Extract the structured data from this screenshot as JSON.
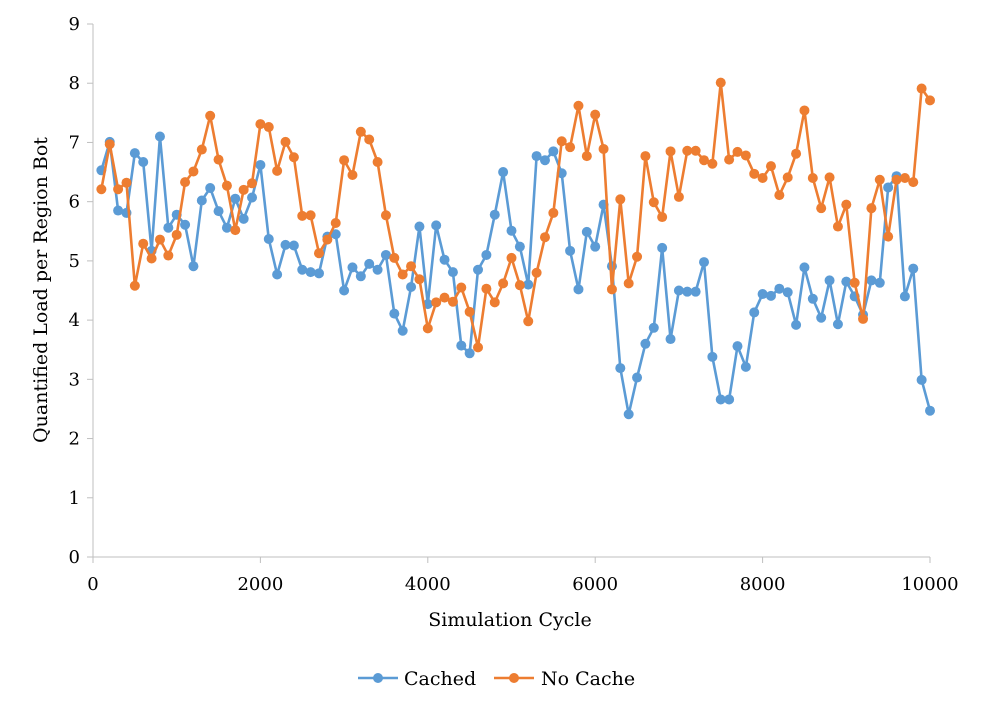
{
  "chart_data": {
    "type": "line",
    "title": "",
    "xlabel": "Simulation Cycle",
    "ylabel": "Quantified Load per Region Bot",
    "xlim": [
      0,
      10000
    ],
    "ylim": [
      0,
      9
    ],
    "x_ticks": [
      "0",
      "2000",
      "4000",
      "6000",
      "8000",
      "10000"
    ],
    "y_ticks": [
      "0",
      "1",
      "2",
      "3",
      "4",
      "5",
      "6",
      "7",
      "8",
      "9"
    ],
    "grid": false,
    "legend_position": "bottom",
    "x": [
      100,
      200,
      300,
      400,
      500,
      600,
      700,
      800,
      900,
      1000,
      1100,
      1200,
      1300,
      1400,
      1500,
      1600,
      1700,
      1800,
      1900,
      2000,
      2100,
      2200,
      2300,
      2400,
      2500,
      2600,
      2700,
      2800,
      2900,
      3000,
      3100,
      3200,
      3300,
      3400,
      3500,
      3600,
      3700,
      3800,
      3900,
      4000,
      4100,
      4200,
      4300,
      4400,
      4500,
      4600,
      4700,
      4800,
      4900,
      5000,
      5100,
      5200,
      5300,
      5400,
      5500,
      5600,
      5700,
      5800,
      5900,
      6000,
      6100,
      6200,
      6300,
      6400,
      6500,
      6600,
      6700,
      6800,
      6900,
      7000,
      7100,
      7200,
      7300,
      7400,
      7500,
      7600,
      7700,
      7800,
      7900,
      8000,
      8100,
      8200,
      8300,
      8400,
      8500,
      8600,
      8700,
      8800,
      8900,
      9000,
      9100,
      9200,
      9300,
      9400,
      9500,
      9600,
      9700,
      9800,
      9900,
      10000
    ],
    "series": [
      {
        "name": "Cached",
        "color": "#5b9bd5",
        "values": [
          6.53,
          7.01,
          5.85,
          5.81,
          6.82,
          6.67,
          5.17,
          7.1,
          5.56,
          5.78,
          5.61,
          4.91,
          6.02,
          6.23,
          5.84,
          5.56,
          6.05,
          5.71,
          6.07,
          6.62,
          5.37,
          4.77,
          5.27,
          5.26,
          4.85,
          4.81,
          4.79,
          5.41,
          5.45,
          4.5,
          4.89,
          4.74,
          4.95,
          4.85,
          5.1,
          4.11,
          3.82,
          4.56,
          5.58,
          4.27,
          5.6,
          5.02,
          4.81,
          3.57,
          3.44,
          4.85,
          5.1,
          5.78,
          6.5,
          5.51,
          5.24,
          4.6,
          6.77,
          6.7,
          6.85,
          6.48,
          5.17,
          4.52,
          5.49,
          5.24,
          5.95,
          4.91,
          3.19,
          2.41,
          3.03,
          3.6,
          3.87,
          5.22,
          3.68,
          4.5,
          4.48,
          4.48,
          4.98,
          3.38,
          2.66,
          2.66,
          3.56,
          3.21,
          4.13,
          4.44,
          4.41,
          4.53,
          4.47,
          3.92,
          4.89,
          4.36,
          4.04,
          4.67,
          3.93,
          4.65,
          4.4,
          4.09,
          4.67,
          4.63,
          6.24,
          6.43,
          4.4,
          4.87,
          2.99,
          2.47
        ]
      },
      {
        "name": "No Cache",
        "color": "#ed7d31",
        "values": [
          6.21,
          6.97,
          6.21,
          6.32,
          4.58,
          5.29,
          5.04,
          5.36,
          5.09,
          5.44,
          6.33,
          6.51,
          6.88,
          7.45,
          6.71,
          6.27,
          5.52,
          6.2,
          6.31,
          7.31,
          7.26,
          6.52,
          7.01,
          6.75,
          5.76,
          5.77,
          5.13,
          5.36,
          5.64,
          6.7,
          6.45,
          7.18,
          7.05,
          6.67,
          5.77,
          5.05,
          4.77,
          4.91,
          4.69,
          3.86,
          4.3,
          4.38,
          4.31,
          4.55,
          4.14,
          3.54,
          4.53,
          4.3,
          4.62,
          5.05,
          4.59,
          3.98,
          4.8,
          5.4,
          5.81,
          7.02,
          6.92,
          7.62,
          6.77,
          7.47,
          6.89,
          4.52,
          6.04,
          4.62,
          5.07,
          6.77,
          5.99,
          5.74,
          6.85,
          6.08,
          6.86,
          6.86,
          6.7,
          6.64,
          8.01,
          6.71,
          6.84,
          6.78,
          6.47,
          6.4,
          6.6,
          6.11,
          6.41,
          6.81,
          7.54,
          6.4,
          5.89,
          6.41,
          5.58,
          5.95,
          4.63,
          4.02,
          5.89,
          6.37,
          5.41,
          6.37,
          6.4,
          6.33,
          7.91,
          7.71
        ]
      }
    ]
  }
}
